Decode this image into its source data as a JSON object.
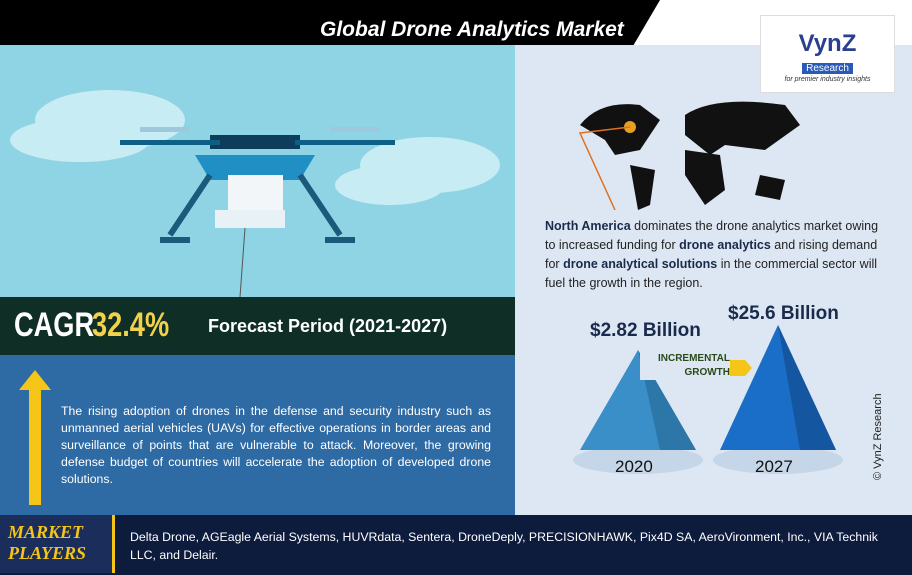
{
  "header": {
    "title": "Global Drone Analytics Market"
  },
  "logo": {
    "name": "VynZ",
    "tag": "Research",
    "slogan": "for premier industry insights"
  },
  "cagr": {
    "label": "CAGR",
    "value": "32.4%",
    "period": "Forecast Period (2021-2027)"
  },
  "description": "The rising adoption of drones in the defense and security industry such as unmanned aerial vehicles (UAVs) for effective operations in border areas and surveillance of points that are vulnerable to attack. Moreover, the growing defense budget of countries will accelerate the adoption of developed drone solutions.",
  "region": {
    "segments": [
      "North America",
      " dominates the drone analytics market owing to increased funding for ",
      "drone analytics",
      " and rising demand for ",
      "drone analytical solutions",
      " in the commercial sector will fuel the growth in the region."
    ]
  },
  "growth": {
    "start_value": "$2.82 Billion",
    "end_value": "$25.6 Billion",
    "start_year": "2020",
    "end_year": "2027",
    "label_line1": "INCREMENTAL",
    "label_line2": "GROWTH"
  },
  "copyright": "© VynZ Research",
  "players": {
    "label_line1": "MARKET",
    "label_line2": "PLAYERS",
    "list": "Delta Drone, AGEagle Aerial Systems, HUVRdata, Sentera, DroneDeply, PRECISIONHAWK, Pix4D SA, AeroVironment, Inc., VIA Technik LLC, and Delair."
  }
}
